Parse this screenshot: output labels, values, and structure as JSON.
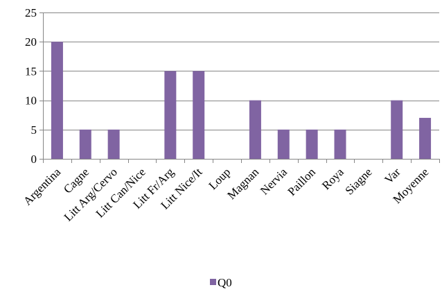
{
  "chart_data": {
    "type": "bar",
    "categories": [
      "Argentina",
      "Cagne",
      "Litt Arg/Cervo",
      "Litt Can/Nice",
      "Litt Fr/Arg",
      "Litt Nice/It",
      "Loup",
      "Magnan",
      "Nervia",
      "Paillon",
      "Roya",
      "Siagne",
      "Var",
      "Moyenne"
    ],
    "series": [
      {
        "name": "Q0",
        "values": [
          20,
          5,
          5,
          0,
          15,
          15,
          0,
          10,
          5,
          5,
          5,
          0,
          10,
          7
        ],
        "color": "#8064A2"
      }
    ],
    "yticks": [
      "0",
      "5",
      "10",
      "15",
      "20",
      "25"
    ],
    "ylim": [
      0,
      25
    ],
    "grid": "horizontal",
    "legend": "bottom",
    "axis_color": "#868686",
    "grid_color": "#868686"
  }
}
